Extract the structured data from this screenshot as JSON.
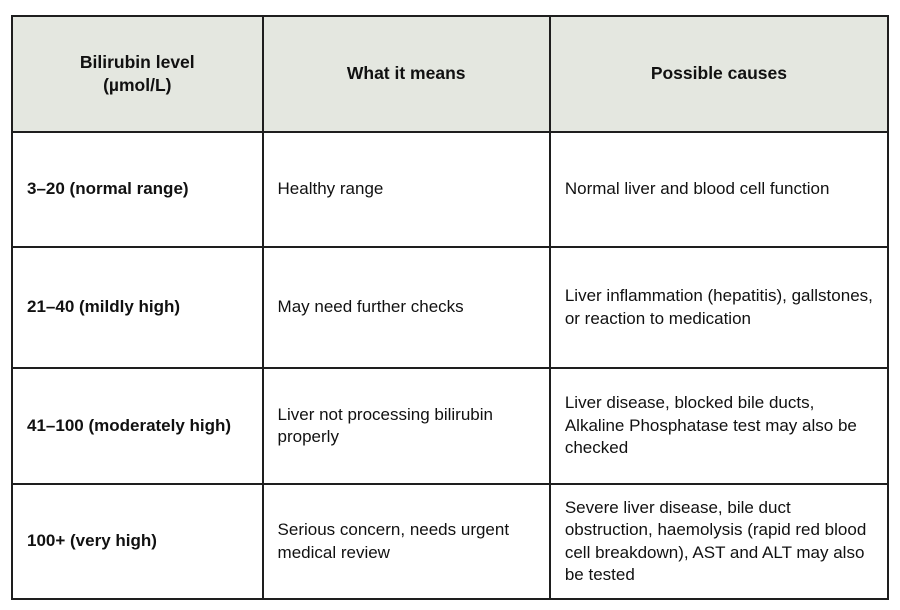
{
  "table": {
    "headers": [
      {
        "label": "Bilirubin level\n(µmol/L)"
      },
      {
        "label": "What it means"
      },
      {
        "label": "Possible causes"
      }
    ],
    "rows": [
      {
        "level": "3–20 (normal range)",
        "meaning": "Healthy range",
        "causes": "Normal liver and blood cell function"
      },
      {
        "level": "21–40 (mildly high)",
        "meaning": "May need further checks",
        "causes": "Liver inflammation (hepatitis), gallstones, or reaction to medication"
      },
      {
        "level": "41–100 (moderately high)",
        "meaning": "Liver not processing bilirubin properly",
        "causes": "Liver disease, blocked bile ducts, Alkaline Phosphatase test may also be checked"
      },
      {
        "level": "100+ (very high)",
        "meaning": "Serious concern, needs urgent medical review",
        "causes": "Severe liver disease, bile duct obstruction, haemolysis (rapid red blood cell breakdown), AST and ALT may also be tested"
      }
    ]
  },
  "colors": {
    "header_bg": "#e4e7e0",
    "border": "#1e1e1e",
    "text": "#111111",
    "page_bg": "#ffffff"
  }
}
